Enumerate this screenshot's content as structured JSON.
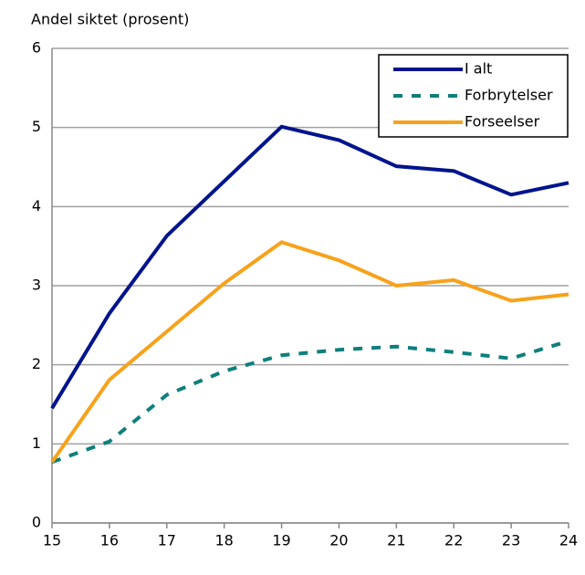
{
  "chart_data": {
    "type": "line",
    "y_label": "Andel siktet (prosent)",
    "x": [
      15,
      16,
      17,
      18,
      19,
      20,
      21,
      22,
      23,
      24
    ],
    "series": [
      {
        "name": "I alt",
        "color": "#00148c",
        "style": "solid",
        "values": [
          1.45,
          2.65,
          3.63,
          4.32,
          5.01,
          4.84,
          4.51,
          4.45,
          4.15,
          4.3
        ]
      },
      {
        "name": "Forbrytelser",
        "color": "#0e7f7c",
        "style": "dashed",
        "values": [
          0.77,
          1.03,
          1.62,
          1.92,
          2.12,
          2.19,
          2.23,
          2.16,
          2.08,
          2.3
        ]
      },
      {
        "name": "Forseelser",
        "color": "#f7a21b",
        "style": "solid",
        "values": [
          0.77,
          1.81,
          2.42,
          3.03,
          3.55,
          3.32,
          3.0,
          3.07,
          2.81,
          2.89
        ]
      }
    ],
    "xlim": [
      15,
      24
    ],
    "xticks": [
      15,
      16,
      17,
      18,
      19,
      20,
      21,
      22,
      23,
      24
    ],
    "ylim": [
      0,
      6
    ],
    "yticks": [
      0,
      1,
      2,
      3,
      4,
      5,
      6
    ],
    "grid": true,
    "legend": "upper right"
  }
}
